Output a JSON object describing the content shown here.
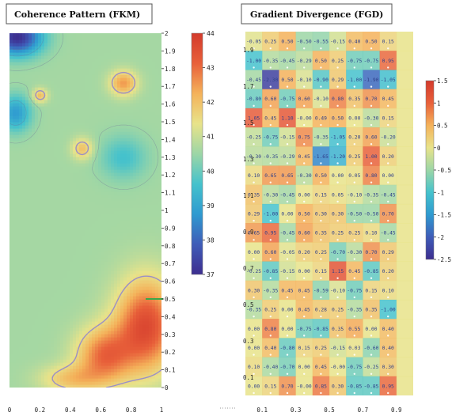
{
  "colors": {
    "scale": [
      "#3d2e8f",
      "#3f5cb8",
      "#2f9ad0",
      "#45c2cc",
      "#9cd6a6",
      "#e8e38a",
      "#f4b25a",
      "#e8603a",
      "#d33a2c"
    ],
    "contour": "#9a8fc7",
    "marker": "#3aa84a",
    "cell_text": "#2e3f8a",
    "dot": "#ffffff"
  },
  "chart_data": [
    {
      "type": "heatmap",
      "title": "Coherence Pattern (FKM)",
      "xlabel": "",
      "ylabel": "",
      "xlim": [
        0,
        1
      ],
      "ylim": [
        0,
        2
      ],
      "x_ticks": [
        "0",
        "0.2",
        "0.4",
        "0.6",
        "0.8",
        "1"
      ],
      "y_ticks": [
        "0",
        "0.1",
        "0.2",
        "0.3",
        "0.4",
        "0.5",
        "0.6",
        "0.7",
        "0.8",
        "0.9",
        "1",
        "1.1",
        "1.2",
        "1.3",
        "1.4",
        "1.5",
        "1.6",
        "1.7",
        "1.8",
        "1.9",
        "2"
      ],
      "colorbar": {
        "min": 37,
        "max": 44,
        "ticks": [
          "37",
          "38",
          "39",
          "40",
          "41",
          "42",
          "43",
          "44"
        ]
      },
      "grid": false,
      "field": {
        "base": 40.6,
        "bumps": [
          {
            "x": 0.05,
            "y": 1.98,
            "v": 37.0,
            "sx": 0.16,
            "sy": 0.1
          },
          {
            "x": 0.04,
            "y": 1.55,
            "v": 38.8,
            "sx": 0.1,
            "sy": 0.1
          },
          {
            "x": 0.75,
            "y": 1.3,
            "v": 39.6,
            "sx": 0.15,
            "sy": 0.12
          },
          {
            "x": 0.2,
            "y": 1.65,
            "v": 42.1,
            "sx": 0.05,
            "sy": 0.04
          },
          {
            "x": 0.75,
            "y": 1.72,
            "v": 42.5,
            "sx": 0.09,
            "sy": 0.07
          },
          {
            "x": 0.48,
            "y": 1.35,
            "v": 42.0,
            "sx": 0.07,
            "sy": 0.06
          },
          {
            "x": 0.9,
            "y": 0.35,
            "v": 43.6,
            "sx": 0.2,
            "sy": 0.26
          },
          {
            "x": 0.62,
            "y": 0.18,
            "v": 42.9,
            "sx": 0.18,
            "sy": 0.16
          },
          {
            "x": 0.4,
            "y": 0.05,
            "v": 41.9,
            "sx": 0.2,
            "sy": 0.08
          }
        ]
      },
      "annotation": {
        "type": "tick-marker",
        "y": 0.5
      }
    },
    {
      "type": "heatmap",
      "title": "Gradient Divergence (FGD)",
      "xlabel": "",
      "ylabel": "",
      "xlim": [
        0,
        1
      ],
      "ylim": [
        0,
        2
      ],
      "x_ticks": [
        "0.1",
        "0.3",
        "0.5",
        "0.7",
        "0.9"
      ],
      "y_ticks": [
        "0.1",
        "0.3",
        "0.5",
        "0.7",
        "0.9",
        "1.1",
        "1.3",
        "1.5",
        "1.7",
        "1.9"
      ],
      "colorbar": {
        "min": -2.5,
        "max": 1.5,
        "ticks": [
          "1.5",
          "1",
          "0.5",
          "0",
          "-0.5",
          "-1",
          "-1.5",
          "-2",
          "-2.5"
        ]
      },
      "grid": false,
      "cols": 10,
      "rows": [
        [
          "-0.05",
          "0.25",
          "0.50",
          "-0.50",
          "-0.55",
          "-0.15",
          "0.40",
          "0.50",
          "0.15",
          ""
        ],
        [
          "-1.00",
          "-0.35",
          "-0.45",
          "-0.29",
          "0.50",
          "0.25",
          "-0.75",
          "-0.75",
          "0.95",
          ""
        ],
        [
          "-0.45",
          "-2.30",
          "0.50",
          "-0.10",
          "-0.90",
          "0.29",
          "-1.00",
          "-1.90",
          "-1.05",
          ""
        ],
        [
          "-0.80",
          "0.60",
          "-0.75",
          "0.60",
          "-0.10",
          "0.80",
          "0.35",
          "0.70",
          "0.45",
          ""
        ],
        [
          "1.05",
          "0.45",
          "1.10",
          "-0.00",
          "0.49",
          "0.50",
          "0.00",
          "-0.30",
          "0.15",
          ""
        ],
        [
          "-0.25",
          "-0.75",
          "-0.15",
          "0.75",
          "-0.35",
          "-1.05",
          "0.20",
          "0.60",
          "-0.20",
          ""
        ],
        [
          "-0.30",
          "-0.35",
          "-0.29",
          "0.45",
          "-1.65",
          "-1.20",
          "0.25",
          "1.00",
          "0.20",
          ""
        ],
        [
          "0.10",
          "0.65",
          "0.65",
          "-0.30",
          "0.50",
          "0.00",
          "0.05",
          "0.80",
          "0.00",
          ""
        ],
        [
          "0.35",
          "-0.30",
          "-0.45",
          "0.00",
          "0.15",
          "0.05",
          "-0.10",
          "-0.35",
          "-0.45",
          ""
        ],
        [
          "0.29",
          "-1.00",
          "0.00",
          "0.50",
          "0.30",
          "0.30",
          "-0.50",
          "-0.50",
          "0.70",
          ""
        ],
        [
          "0.65",
          "0.95",
          "-0.45",
          "0.60",
          "0.35",
          "0.25",
          "0.25",
          "0.10",
          "-0.45",
          ""
        ],
        [
          "0.00",
          "0.60",
          "-0.05",
          "0.20",
          "0.25",
          "-0.70",
          "-0.30",
          "0.70",
          "0.29",
          ""
        ],
        [
          "-0.25",
          "-0.85",
          "-0.15",
          "0.00",
          "0.15",
          "1.15",
          "0.45",
          "-0.85",
          "0.20",
          ""
        ],
        [
          "0.30",
          "-0.35",
          "0.45",
          "0.45",
          "-0.59",
          "-0.10",
          "-0.75",
          "0.15",
          "0.10",
          ""
        ],
        [
          "-0.35",
          "0.25",
          "0.00",
          "0.45",
          "0.28",
          "0.25",
          "-0.35",
          "0.35",
          "-1.00",
          ""
        ],
        [
          "0.00",
          "0.80",
          "0.00",
          "-0.75",
          "-0.85",
          "0.35",
          "0.55",
          "0.00",
          "0.40",
          ""
        ],
        [
          "0.00",
          "0.40",
          "-0.80",
          "0.15",
          "0.25",
          "-0.15",
          "0.03",
          "-0.60",
          "0.40",
          ""
        ],
        [
          "0.10",
          "-0.40",
          "-0.70",
          "0.00",
          "0.45",
          "-0.00",
          "-0.75",
          "-0.25",
          "0.30",
          ""
        ],
        [
          "0.00",
          "0.15",
          "0.70",
          "-0.00",
          "0.85",
          "0.30",
          "-0.85",
          "-0.85",
          "0.95",
          ""
        ]
      ]
    }
  ]
}
